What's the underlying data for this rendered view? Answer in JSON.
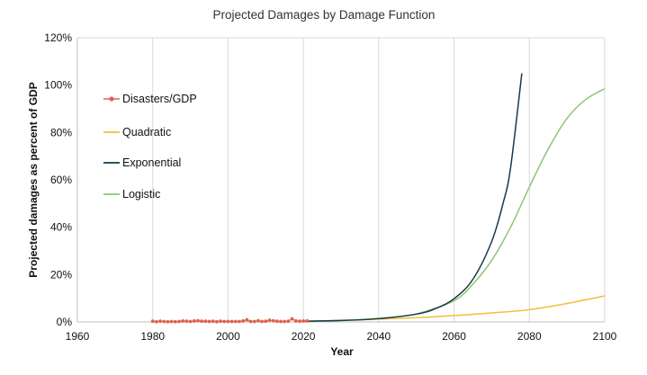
{
  "chart_data": {
    "type": "line",
    "title": "Projected Damages by Damage Function",
    "xlabel": "Year",
    "ylabel": "Projected damages as percent of GDP",
    "xlim": [
      1960,
      2100
    ],
    "ylim": [
      0,
      120
    ],
    "x_ticks": [
      "1960",
      "1980",
      "2000",
      "2020",
      "2040",
      "2060",
      "2080",
      "2100"
    ],
    "y_ticks": [
      "0%",
      "20%",
      "40%",
      "60%",
      "80%",
      "100%",
      "120%"
    ],
    "grid": "vertical",
    "legend_position": "left",
    "series": [
      {
        "name": "Disasters/GDP",
        "color": "#e0624f",
        "marker": "circle",
        "x": [
          1980,
          1981,
          1982,
          1983,
          1984,
          1985,
          1986,
          1987,
          1988,
          1989,
          1990,
          1991,
          1992,
          1993,
          1994,
          1995,
          1996,
          1997,
          1998,
          1999,
          2000,
          2001,
          2002,
          2003,
          2004,
          2005,
          2006,
          2007,
          2008,
          2009,
          2010,
          2011,
          2012,
          2013,
          2014,
          2015,
          2016,
          2017,
          2018,
          2019,
          2020,
          2021
        ],
        "y": [
          0.3,
          0.1,
          0.3,
          0.2,
          0.1,
          0.2,
          0.1,
          0.2,
          0.4,
          0.3,
          0.2,
          0.4,
          0.5,
          0.3,
          0.3,
          0.2,
          0.3,
          0.1,
          0.3,
          0.2,
          0.2,
          0.2,
          0.2,
          0.2,
          0.4,
          0.9,
          0.2,
          0.2,
          0.5,
          0.2,
          0.3,
          0.7,
          0.5,
          0.3,
          0.2,
          0.2,
          0.3,
          1.3,
          0.4,
          0.3,
          0.4,
          0.4
        ]
      },
      {
        "name": "Quadratic",
        "color": "#f2be3a",
        "x": [
          2020,
          2030,
          2040,
          2050,
          2060,
          2070,
          2080,
          2090,
          2100
        ],
        "y": [
          0.3,
          0.7,
          1.2,
          1.8,
          2.7,
          3.8,
          5.2,
          7.8,
          11.0
        ]
      },
      {
        "name": "Exponential",
        "color": "#153a4c",
        "x": [
          2020,
          2030,
          2040,
          2050,
          2055,
          2060,
          2065,
          2070,
          2073,
          2075,
          2078
        ],
        "y": [
          0.3,
          0.6,
          1.4,
          3.3,
          5.6,
          9.8,
          18.0,
          34.0,
          50.0,
          65.0,
          105.0
        ]
      },
      {
        "name": "Logistic",
        "color": "#8fc575",
        "x": [
          2020,
          2030,
          2040,
          2050,
          2060,
          2065,
          2070,
          2075,
          2080,
          2085,
          2090,
          2095,
          2100
        ],
        "y": [
          0.3,
          0.6,
          1.5,
          3.4,
          9.0,
          16.0,
          26.0,
          40.0,
          57.0,
          73.0,
          86.0,
          94.0,
          98.5
        ]
      }
    ]
  }
}
